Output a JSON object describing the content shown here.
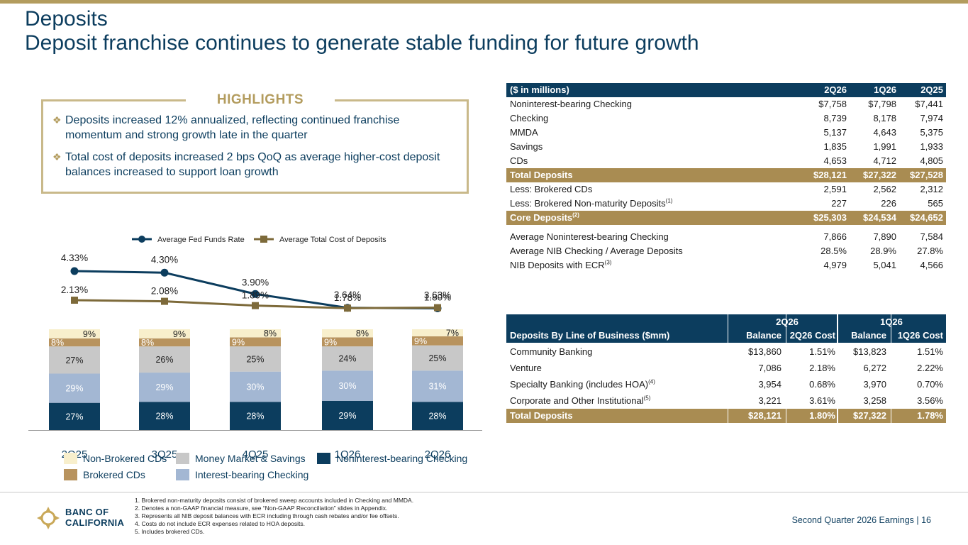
{
  "title": "Deposits",
  "subtitle": "Deposit franchise continues to generate stable funding for future growth",
  "highlights": {
    "heading": "HIGHLIGHTS",
    "items": [
      "Deposits increased 12% annualized, reflecting continued franchise momentum and strong growth late in the quarter",
      "Total cost of deposits increased 2 bps QoQ as average higher-cost deposit balances increased to support loan growth"
    ]
  },
  "summary_table": {
    "header": [
      "($ in millions)",
      "2Q26",
      "1Q26",
      "2Q25"
    ],
    "rows": [
      {
        "label": "Noninterest-bearing Checking",
        "v": [
          "$7,758",
          "$7,798",
          "$7,441"
        ]
      },
      {
        "label": "Checking",
        "v": [
          "8,739",
          "8,178",
          "7,974"
        ]
      },
      {
        "label": "MMDA",
        "v": [
          "5,137",
          "4,643",
          "5,375"
        ]
      },
      {
        "label": "Savings",
        "v": [
          "1,835",
          "1,991",
          "1,933"
        ]
      },
      {
        "label": "CDs",
        "v": [
          "4,653",
          "4,712",
          "4,805"
        ]
      }
    ],
    "total": {
      "label": "Total Deposits",
      "v": [
        "$28,121",
        "$27,322",
        "$27,528"
      ]
    },
    "less": [
      {
        "label": "Less: Brokered CDs",
        "sup": "",
        "v": [
          "2,591",
          "2,562",
          "2,312"
        ]
      },
      {
        "label": "Less: Brokered Non-maturity Deposits",
        "sup": "(1)",
        "v": [
          "227",
          "226",
          "565"
        ]
      }
    ],
    "core": {
      "label": "Core Deposits",
      "sup": "(2)",
      "v": [
        "$25,303",
        "$24,534",
        "$24,652"
      ]
    },
    "avg": [
      {
        "label": "Average Noninterest-bearing Checking",
        "sup": "",
        "v": [
          "7,866",
          "7,890",
          "7,584"
        ]
      },
      {
        "label": "Average NIB Checking / Average Deposits",
        "sup": "",
        "v": [
          "28.5%",
          "28.9%",
          "27.8%"
        ]
      },
      {
        "label": "NIB Deposits with ECR",
        "sup": "(3)",
        "v": [
          "4,979",
          "5,041",
          "4,566"
        ]
      }
    ]
  },
  "lob_table": {
    "title": "Deposits By Line of Business ($mm)",
    "group1": "2Q26",
    "group2": "1Q26",
    "cols": [
      "Balance",
      "2Q26 Cost",
      "Balance",
      "1Q26 Cost"
    ],
    "rows": [
      {
        "label": "Community Banking",
        "sup": "",
        "v": [
          "$13,860",
          "1.51%",
          "$13,823",
          "1.51%"
        ]
      },
      {
        "label": "Venture",
        "sup": "",
        "v": [
          "7,086",
          "2.18%",
          "6,272",
          "2.22%"
        ]
      },
      {
        "label": "Specialty Banking (includes HOA)",
        "sup": "(4)",
        "v": [
          "3,954",
          "0.68%",
          "3,970",
          "0.70%"
        ]
      },
      {
        "label": "Corporate and Other Institutional",
        "sup": "(5)",
        "v": [
          "3,221",
          "3.61%",
          "3,258",
          "3.56%"
        ]
      }
    ],
    "total": {
      "label": "Total Deposits",
      "v": [
        "$28,121",
        "1.80%",
        "$27,322",
        "1.78%"
      ]
    }
  },
  "chart_data": {
    "type": "bar",
    "stacked": true,
    "categories": [
      "2Q25",
      "3Q25",
      "4Q25",
      "1Q26",
      "2Q26"
    ],
    "series": [
      {
        "name": "Noninterest-bearing Checking",
        "values": [
          27,
          28,
          28,
          29,
          28
        ],
        "color": "#0c3d5e"
      },
      {
        "name": "Interest-bearing Checking",
        "values": [
          29,
          29,
          30,
          30,
          31
        ],
        "color": "#a3b7d3"
      },
      {
        "name": "Money Market & Savings",
        "values": [
          27,
          26,
          25,
          24,
          25
        ],
        "color": "#c8c8c8"
      },
      {
        "name": "Brokered CDs",
        "values": [
          8,
          8,
          9,
          9,
          9
        ],
        "color": "#b8935e"
      },
      {
        "name": "Non-Brokered CDs",
        "values": [
          9,
          9,
          8,
          8,
          7
        ],
        "color": "#f8efcc"
      }
    ],
    "lines": [
      {
        "name": "Average Fed Funds Rate",
        "values": [
          4.33,
          4.3,
          3.9,
          3.64,
          3.63
        ],
        "labels": [
          "4.33%",
          "4.30%",
          "3.90%",
          "3.64%",
          "3.63%"
        ],
        "color": "#0c3d5e"
      },
      {
        "name": "Average Total Cost of Deposits",
        "values": [
          2.13,
          2.08,
          1.89,
          1.78,
          1.8
        ],
        "labels": [
          "2.13%",
          "2.08%",
          "1.89%",
          "1.78%",
          "1.80%"
        ],
        "color": "#7d6a3a"
      }
    ],
    "legend_bottom": [
      "Non-Brokered CDs",
      "Money Market & Savings",
      "Noninterest-bearing Checking",
      "Brokered CDs",
      "Interest-bearing Checking"
    ]
  },
  "footnotes": [
    "1.  Brokered non-maturity deposits consist of brokered sweep accounts included in Checking and MMDA.",
    "2.  Denotes a non-GAAP financial measure, see “Non-GAAP Reconciliation” slides in Appendix.",
    "3.  Represents all NIB deposit balances with ECR including through cash rebates and/or fee offsets.",
    "4.  Costs do not include ECR expenses related to HOA deposits.",
    "5.  Includes brokered CDs."
  ],
  "logo": {
    "line1": "BANC OF",
    "line2": "CALIFORNIA"
  },
  "footer": "Second Quarter 2026 Earnings |  16"
}
